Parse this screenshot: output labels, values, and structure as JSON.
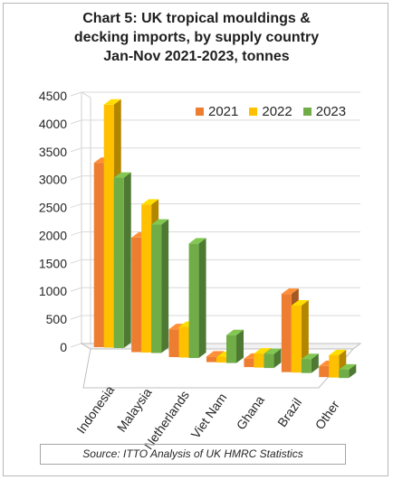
{
  "chart_data": {
    "type": "bar",
    "title_lines": [
      "Chart 5: UK tropical mouldings &",
      "decking imports, by supply country",
      "Jan-Nov 2021-2023, tonnes"
    ],
    "categories": [
      "Indonesia",
      "Malaysia",
      "Netherlands",
      "Viet Nam",
      "Ghana",
      "Brazil",
      "Other"
    ],
    "series": [
      {
        "name": "2021",
        "color": "#ed7d31",
        "values": [
          3300,
          2050,
          500,
          100,
          150,
          1400,
          200
        ]
      },
      {
        "name": "2022",
        "color": "#ffc000",
        "values": [
          4350,
          2650,
          550,
          100,
          250,
          1200,
          400
        ]
      },
      {
        "name": "2023",
        "color": "#70ad47",
        "values": [
          3050,
          2300,
          2050,
          500,
          250,
          250,
          150
        ]
      }
    ],
    "y_ticks": [
      "0",
      "500",
      "1000",
      "1500",
      "2000",
      "2500",
      "3000",
      "3500",
      "4000",
      "4500"
    ],
    "ylim": [
      0,
      4500
    ],
    "grid": true,
    "legend_position": "top-right"
  },
  "source_note": "Source: ITTO Analysis of UK HMRC Statistics"
}
